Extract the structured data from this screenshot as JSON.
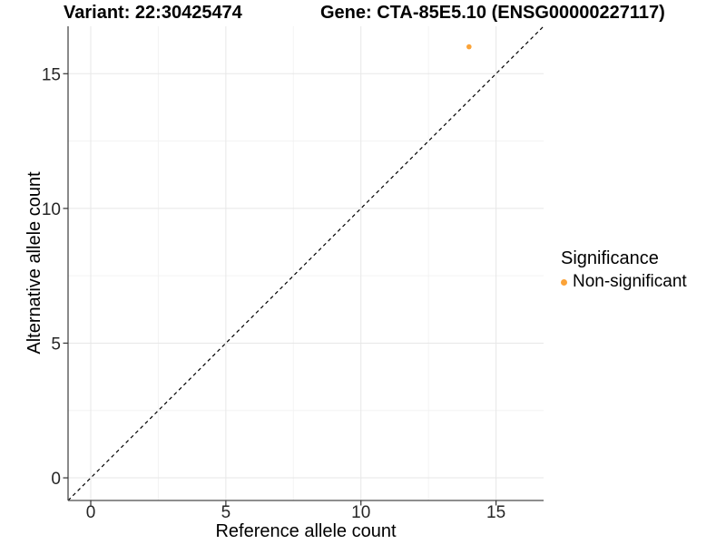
{
  "title": {
    "variant": "Variant: 22:30425474",
    "gene": "Gene: CTA-85E5.10 (ENSG00000227117)"
  },
  "chart_data": {
    "type": "scatter",
    "title": "Variant: 22:30425474   Gene: CTA-85E5.10 (ENSG00000227117)",
    "xlabel": "Reference allele count",
    "ylabel": "Alternative allele count",
    "xlim": [
      -0.84,
      16.76
    ],
    "ylim": [
      -0.84,
      16.76
    ],
    "x_ticks": [
      0,
      5,
      10,
      15
    ],
    "y_ticks": [
      0,
      5,
      10,
      15
    ],
    "x_minor_ticks": [
      2.5,
      7.5,
      12.5
    ],
    "y_minor_ticks": [
      2.5,
      7.5,
      12.5
    ],
    "grid": "major+minor",
    "reference_line": {
      "kind": "identity y=x",
      "style": "dashed",
      "color": "#000000"
    },
    "series": [
      {
        "name": "Non-significant",
        "color": "#FBA338",
        "points": [
          [
            14,
            16
          ]
        ]
      }
    ],
    "legend": {
      "title": "Significance",
      "position": "right",
      "items": [
        {
          "label": "Non-significant",
          "color": "#FBA338"
        }
      ]
    }
  },
  "colors": {
    "background": "#ffffff",
    "axis_line": "#4a4a4a",
    "tick_mark": "#333333",
    "tick_label": "#262626",
    "grid_major": "#e7e7e7",
    "grid_minor": "#f3f3f3",
    "point": "#FBA338",
    "reference_line": "#000000"
  }
}
